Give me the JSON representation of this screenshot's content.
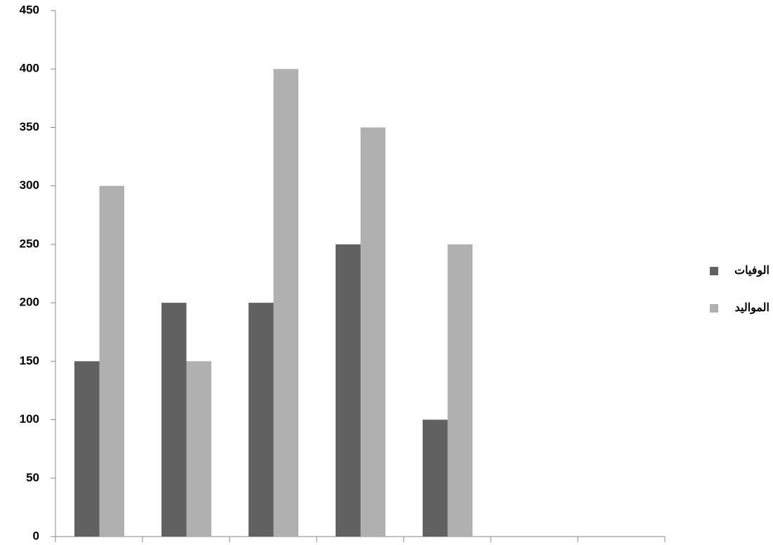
{
  "chart_data": {
    "type": "bar",
    "categories": [
      null,
      null,
      null,
      null,
      null,
      null,
      null
    ],
    "series": [
      {
        "name": "الوفيات",
        "color": "#616161",
        "values": [
          150,
          200,
          200,
          250,
          100,
          null,
          null
        ]
      },
      {
        "name": "المواليد",
        "color": "#b0b0b0",
        "values": [
          300,
          150,
          400,
          350,
          250,
          null,
          null
        ]
      }
    ],
    "ylim": [
      0,
      450
    ],
    "yticks": [
      0,
      50,
      100,
      150,
      200,
      250,
      300,
      350,
      400,
      450
    ],
    "grid": false,
    "legend": "right"
  }
}
